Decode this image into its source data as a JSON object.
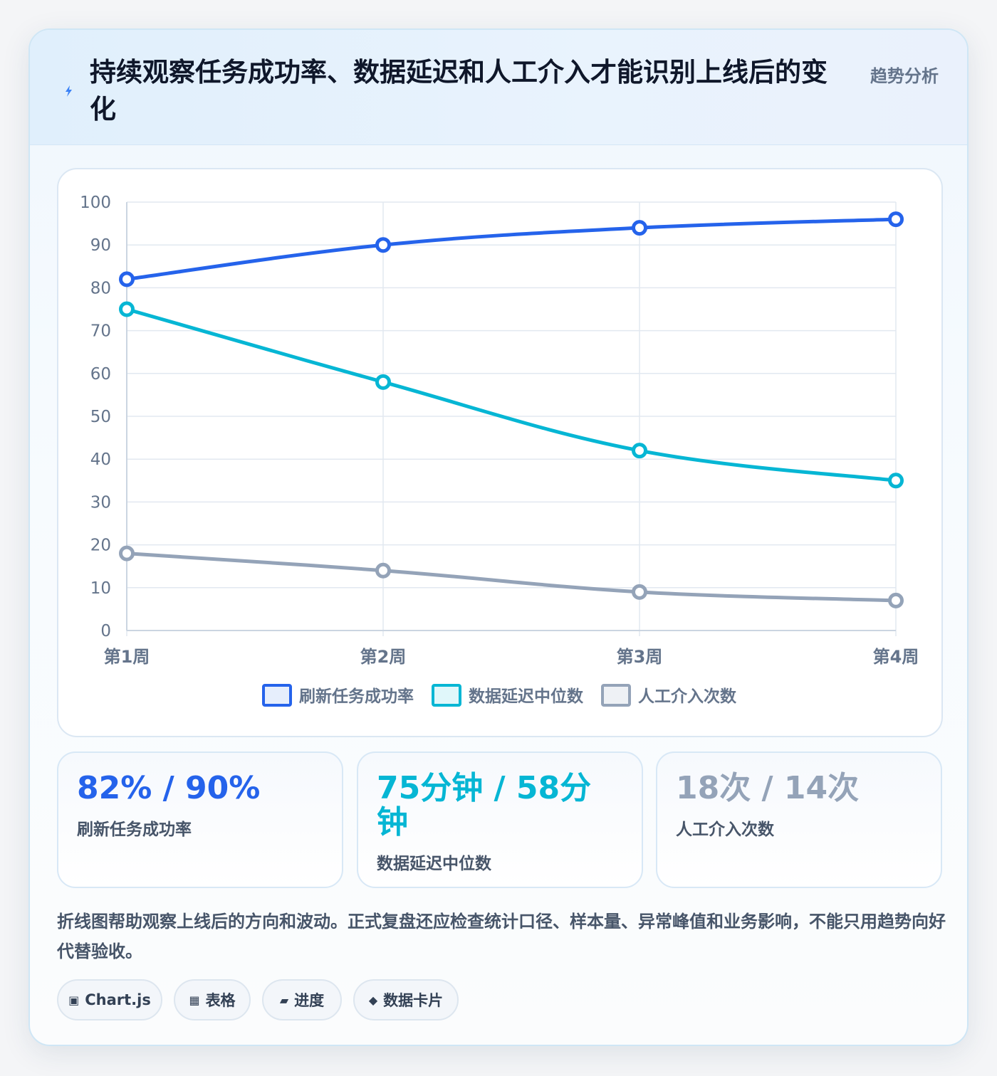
{
  "header": {
    "title": "持续观察任务成功率、数据延迟和人工介入才能识别上线后的变化",
    "tag": "趋势分析",
    "icon": "lightning-icon"
  },
  "chart_data": {
    "type": "line",
    "categories": [
      "第1周",
      "第2周",
      "第3周",
      "第4周"
    ],
    "ylim": [
      0,
      100
    ],
    "yticks": [
      0,
      10,
      20,
      30,
      40,
      50,
      60,
      70,
      80,
      90,
      100
    ],
    "grid": true,
    "legend_position": "bottom",
    "series": [
      {
        "name": "刷新任务成功率",
        "values": [
          82,
          90,
          94,
          96
        ],
        "color": "#2563eb",
        "fill": "#e6eefc"
      },
      {
        "name": "数据延迟中位数",
        "values": [
          75,
          58,
          42,
          35
        ],
        "color": "#06b6d4",
        "fill": "#e0f7fa"
      },
      {
        "name": "人工介入次数",
        "values": [
          18,
          14,
          9,
          7
        ],
        "color": "#94a3b8",
        "fill": "#eef1f5"
      }
    ]
  },
  "stats": [
    {
      "value": "82% / 90%",
      "label": "刷新任务成功率",
      "color": "#2563eb"
    },
    {
      "value": "75分钟 / 58分钟",
      "label": "数据延迟中位数",
      "color": "#06b6d4"
    },
    {
      "value": "18次 / 14次",
      "label": "人工介入次数",
      "color": "#94a3b8"
    }
  ],
  "note": "折线图帮助观察上线后的方向和波动。正式复盘还应检查统计口径、样本量、异常峰值和业务影响，不能只用趋势向好代替验收。",
  "chips": [
    {
      "icon": "▣",
      "icon_name": "chart-icon",
      "label": "Chart.js"
    },
    {
      "icon": "▦",
      "icon_name": "table-icon",
      "label": "表格"
    },
    {
      "icon": "▰",
      "icon_name": "progress-icon",
      "label": "进度"
    },
    {
      "icon": "◆",
      "icon_name": "data-card-icon",
      "label": "数据卡片"
    }
  ]
}
